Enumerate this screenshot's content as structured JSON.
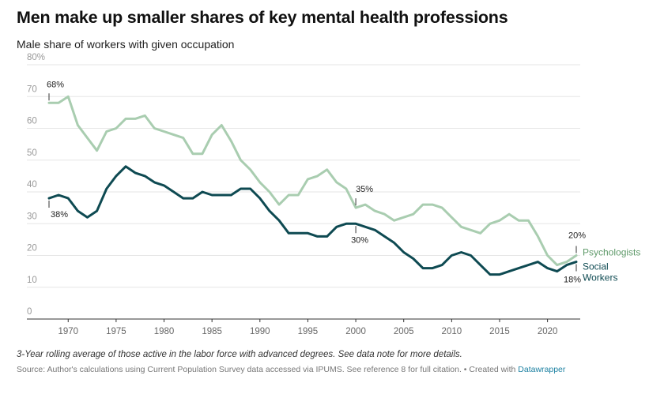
{
  "header": {
    "title": "Men make up smaller shares of key mental health professions",
    "subtitle": "Male share of workers with given occupation"
  },
  "footer": {
    "note": "3-Year rolling average of those active in the labor force with advanced degrees. See data note for more details.",
    "source": "Source: Author's calculations using Current Population Survey data accessed via IPUMS. See reference 8 for full citation. • Created with ",
    "brand": "Datawrapper"
  },
  "colors": {
    "psychologists": "#a9cdb0",
    "social_workers": "#0e4a52",
    "psych_label": "#5f9a6a"
  },
  "chart_data": {
    "type": "line",
    "title": "Men make up smaller shares of key mental health professions",
    "subtitle": "Male share of workers with given occupation",
    "ylim": [
      0,
      80
    ],
    "xlim": [
      1968,
      2023
    ],
    "y_ticks": [
      "0",
      "10",
      "20",
      "30",
      "40",
      "50",
      "60",
      "70",
      "80%"
    ],
    "x_ticks": [
      "1970",
      "1975",
      "1980",
      "1985",
      "1990",
      "1995",
      "2000",
      "2005",
      "2010",
      "2015",
      "2020"
    ],
    "grid": true,
    "x": [
      1968,
      1969,
      1970,
      1971,
      1972,
      1973,
      1974,
      1975,
      1976,
      1977,
      1978,
      1979,
      1980,
      1981,
      1982,
      1983,
      1984,
      1985,
      1986,
      1987,
      1988,
      1989,
      1990,
      1991,
      1992,
      1993,
      1994,
      1995,
      1996,
      1997,
      1998,
      1999,
      2000,
      2001,
      2002,
      2003,
      2004,
      2005,
      2006,
      2007,
      2008,
      2009,
      2010,
      2011,
      2012,
      2013,
      2014,
      2015,
      2016,
      2017,
      2018,
      2019,
      2020,
      2021,
      2022,
      2023
    ],
    "series": [
      {
        "name": "Psychologists",
        "label": "Psychologists",
        "values": [
          68,
          68,
          70,
          61,
          57,
          53,
          59,
          60,
          63,
          63,
          64,
          60,
          59,
          58,
          57,
          52,
          52,
          58,
          61,
          56,
          50,
          47,
          43,
          40,
          36,
          39,
          39,
          44,
          45,
          47,
          43,
          41,
          35,
          36,
          34,
          33,
          31,
          32,
          33,
          36,
          36,
          35,
          32,
          29,
          28,
          27,
          30,
          31,
          33,
          31,
          31,
          26,
          20,
          17,
          18,
          20
        ]
      },
      {
        "name": "Social Workers",
        "label": [
          "Social",
          "Workers"
        ],
        "values": [
          38,
          39,
          38,
          34,
          32,
          34,
          41,
          45,
          48,
          46,
          45,
          43,
          42,
          40,
          38,
          38,
          40,
          39,
          39,
          39,
          41,
          41,
          38,
          34,
          31,
          27,
          27,
          27,
          26,
          26,
          29,
          30,
          30,
          29,
          28,
          26,
          24,
          21,
          19,
          16,
          16,
          17,
          20,
          21,
          20,
          17,
          14,
          14,
          15,
          16,
          17,
          18,
          16,
          15,
          17,
          18
        ]
      }
    ],
    "annotations": [
      {
        "text": "68%",
        "x": 1968,
        "y": 68
      },
      {
        "text": "38%",
        "x": 1968,
        "y": 38
      },
      {
        "text": "35%",
        "x": 2000,
        "y": 35
      },
      {
        "text": "30%",
        "x": 2000,
        "y": 30
      },
      {
        "text": "20%",
        "x": 2023,
        "y": 20
      },
      {
        "text": "18%",
        "x": 2023,
        "y": 18
      }
    ]
  }
}
